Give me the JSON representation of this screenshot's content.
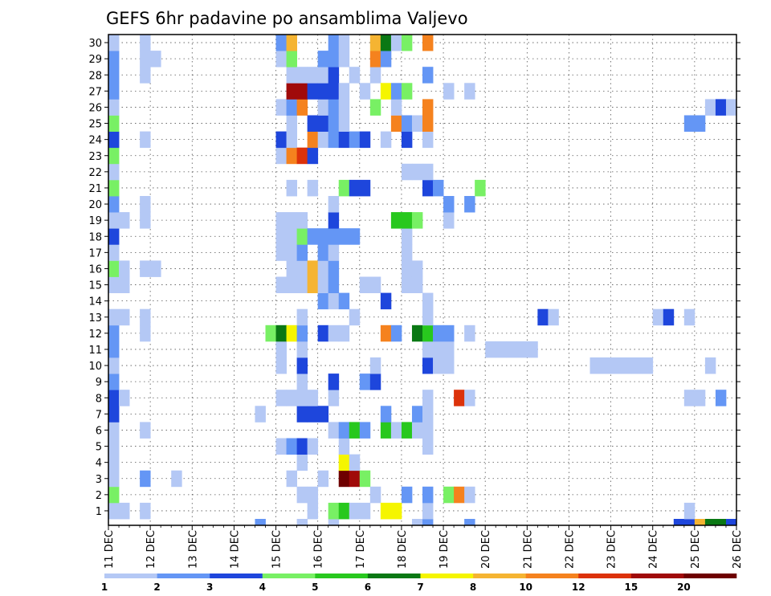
{
  "chart_data": {
    "type": "heatmap",
    "title": "GEFS 6hr padavine po ansamblima Valjevo",
    "x_unit": "6-hour steps starting 11 DEC 00Z",
    "x_tick_labels": [
      "11 DEC",
      "12 DEC",
      "13 DEC",
      "14 DEC",
      "15 DEC",
      "16 DEC",
      "17 DEC",
      "18 DEC",
      "19 DEC",
      "20 DEC",
      "21 DEC",
      "22 DEC",
      "23 DEC",
      "24 DEC",
      "25 DEC",
      "26 DEC"
    ],
    "y_tick_labels": [
      "1",
      "2",
      "3",
      "4",
      "5",
      "6",
      "7",
      "8",
      "9",
      "10",
      "11",
      "12",
      "13",
      "14",
      "15",
      "16",
      "17",
      "18",
      "19",
      "20",
      "21",
      "22",
      "23",
      "24",
      "25",
      "26",
      "27",
      "28",
      "29",
      "30"
    ],
    "xlim": [
      0,
      60
    ],
    "ylim": [
      0,
      30
    ],
    "grid": true,
    "colorbar": {
      "levels": [
        "1",
        "2",
        "3",
        "4",
        "5",
        "6",
        "7",
        "8",
        "10",
        "12",
        "15",
        "20"
      ],
      "colors": [
        "#b4c8f5",
        "#6496f5",
        "#1e46dc",
        "#78f064",
        "#28c81e",
        "#0a7814",
        "#f5f500",
        "#f5b432",
        "#f5821e",
        "#dc320a",
        "#a00a0a",
        "#6e0000"
      ]
    },
    "cells_format": "[x_step, member, color_class]",
    "cells": [
      [
        0,
        1,
        1
      ],
      [
        0,
        2,
        4
      ],
      [
        0,
        3,
        1
      ],
      [
        0,
        4,
        1
      ],
      [
        0,
        5,
        1
      ],
      [
        0,
        6,
        1
      ],
      [
        0,
        7,
        3
      ],
      [
        0,
        8,
        3
      ],
      [
        0,
        9,
        2
      ],
      [
        0,
        10,
        1
      ],
      [
        0,
        11,
        2
      ],
      [
        0,
        12,
        2
      ],
      [
        0,
        13,
        1
      ],
      [
        0,
        15,
        1
      ],
      [
        0,
        16,
        4
      ],
      [
        0,
        17,
        1
      ],
      [
        0,
        18,
        3
      ],
      [
        0,
        19,
        1
      ],
      [
        0,
        20,
        2
      ],
      [
        0,
        21,
        4
      ],
      [
        0,
        22,
        1
      ],
      [
        0,
        23,
        4
      ],
      [
        0,
        24,
        3
      ],
      [
        0,
        25,
        4
      ],
      [
        0,
        26,
        1
      ],
      [
        0,
        27,
        2
      ],
      [
        0,
        28,
        2
      ],
      [
        0,
        29,
        2
      ],
      [
        0,
        30,
        1
      ],
      [
        1,
        1,
        1
      ],
      [
        1,
        8,
        1
      ],
      [
        1,
        13,
        1
      ],
      [
        1,
        15,
        1
      ],
      [
        1,
        16,
        1
      ],
      [
        1,
        19,
        1
      ],
      [
        3,
        1,
        1
      ],
      [
        3,
        3,
        2
      ],
      [
        3,
        6,
        1
      ],
      [
        3,
        12,
        1
      ],
      [
        3,
        13,
        1
      ],
      [
        3,
        16,
        1
      ],
      [
        3,
        19,
        1
      ],
      [
        3,
        20,
        1
      ],
      [
        3,
        24,
        1
      ],
      [
        3,
        28,
        1
      ],
      [
        3,
        29,
        1
      ],
      [
        3,
        30,
        1
      ],
      [
        4,
        16,
        1
      ],
      [
        4,
        29,
        1
      ],
      [
        6,
        3,
        1
      ],
      [
        14,
        0,
        2
      ],
      [
        14,
        7,
        1
      ],
      [
        15,
        12,
        4
      ],
      [
        16,
        5,
        1
      ],
      [
        16,
        8,
        1
      ],
      [
        16,
        10,
        1
      ],
      [
        16,
        11,
        1
      ],
      [
        16,
        12,
        6
      ],
      [
        16,
        15,
        1
      ],
      [
        16,
        17,
        1
      ],
      [
        16,
        18,
        1
      ],
      [
        16,
        19,
        1
      ],
      [
        16,
        23,
        1
      ],
      [
        16,
        24,
        3
      ],
      [
        16,
        26,
        1
      ],
      [
        16,
        29,
        1
      ],
      [
        16,
        30,
        2
      ],
      [
        17,
        3,
        1
      ],
      [
        17,
        5,
        2
      ],
      [
        17,
        8,
        1
      ],
      [
        17,
        12,
        7
      ],
      [
        17,
        15,
        1
      ],
      [
        17,
        16,
        1
      ],
      [
        17,
        17,
        1
      ],
      [
        17,
        18,
        1
      ],
      [
        17,
        19,
        1
      ],
      [
        17,
        21,
        1
      ],
      [
        17,
        23,
        9
      ],
      [
        17,
        24,
        1
      ],
      [
        17,
        25,
        1
      ],
      [
        17,
        26,
        2
      ],
      [
        17,
        27,
        11
      ],
      [
        17,
        28,
        1
      ],
      [
        17,
        29,
        4
      ],
      [
        17,
        30,
        8
      ],
      [
        18,
        0,
        1
      ],
      [
        18,
        2,
        1
      ],
      [
        18,
        4,
        1
      ],
      [
        18,
        5,
        3
      ],
      [
        18,
        7,
        3
      ],
      [
        18,
        8,
        1
      ],
      [
        18,
        9,
        1
      ],
      [
        18,
        10,
        3
      ],
      [
        18,
        11,
        1
      ],
      [
        18,
        12,
        2
      ],
      [
        18,
        13,
        1
      ],
      [
        18,
        15,
        1
      ],
      [
        18,
        16,
        1
      ],
      [
        18,
        17,
        2
      ],
      [
        18,
        18,
        4
      ],
      [
        18,
        19,
        1
      ],
      [
        18,
        23,
        10
      ],
      [
        18,
        26,
        9
      ],
      [
        18,
        27,
        11
      ],
      [
        18,
        28,
        1
      ],
      [
        19,
        1,
        1
      ],
      [
        19,
        2,
        1
      ],
      [
        19,
        5,
        1
      ],
      [
        19,
        7,
        3
      ],
      [
        19,
        8,
        1
      ],
      [
        19,
        15,
        8
      ],
      [
        19,
        16,
        8
      ],
      [
        19,
        18,
        2
      ],
      [
        19,
        21,
        1
      ],
      [
        19,
        23,
        3
      ],
      [
        19,
        24,
        9
      ],
      [
        19,
        25,
        3
      ],
      [
        19,
        27,
        3
      ],
      [
        19,
        28,
        1
      ],
      [
        20,
        3,
        1
      ],
      [
        20,
        7,
        3
      ],
      [
        20,
        12,
        3
      ],
      [
        20,
        14,
        2
      ],
      [
        20,
        15,
        1
      ],
      [
        20,
        16,
        1
      ],
      [
        20,
        17,
        2
      ],
      [
        20,
        18,
        2
      ],
      [
        20,
        24,
        1
      ],
      [
        20,
        25,
        3
      ],
      [
        20,
        26,
        1
      ],
      [
        20,
        27,
        3
      ],
      [
        20,
        28,
        1
      ],
      [
        20,
        29,
        2
      ],
      [
        21,
        0,
        1
      ],
      [
        21,
        1,
        4
      ],
      [
        21,
        6,
        1
      ],
      [
        21,
        8,
        1
      ],
      [
        21,
        9,
        3
      ],
      [
        21,
        12,
        1
      ],
      [
        21,
        14,
        1
      ],
      [
        21,
        15,
        2
      ],
      [
        21,
        16,
        2
      ],
      [
        21,
        17,
        1
      ],
      [
        21,
        18,
        2
      ],
      [
        21,
        19,
        3
      ],
      [
        21,
        20,
        1
      ],
      [
        21,
        24,
        2
      ],
      [
        21,
        25,
        2
      ],
      [
        21,
        26,
        2
      ],
      [
        21,
        27,
        3
      ],
      [
        21,
        28,
        3
      ],
      [
        21,
        29,
        2
      ],
      [
        21,
        30,
        2
      ],
      [
        22,
        1,
        5
      ],
      [
        22,
        3,
        12
      ],
      [
        22,
        4,
        7
      ],
      [
        22,
        5,
        1
      ],
      [
        22,
        6,
        2
      ],
      [
        22,
        12,
        1
      ],
      [
        22,
        14,
        2
      ],
      [
        22,
        18,
        2
      ],
      [
        22,
        21,
        4
      ],
      [
        22,
        24,
        3
      ],
      [
        22,
        25,
        1
      ],
      [
        22,
        26,
        1
      ],
      [
        22,
        27,
        1
      ],
      [
        22,
        29,
        1
      ],
      [
        22,
        30,
        1
      ],
      [
        23,
        1,
        1
      ],
      [
        23,
        3,
        11
      ],
      [
        23,
        4,
        1
      ],
      [
        23,
        6,
        5
      ],
      [
        23,
        13,
        1
      ],
      [
        23,
        18,
        2
      ],
      [
        23,
        21,
        3
      ],
      [
        23,
        24,
        2
      ],
      [
        23,
        28,
        1
      ],
      [
        24,
        1,
        1
      ],
      [
        24,
        3,
        4
      ],
      [
        24,
        6,
        2
      ],
      [
        24,
        9,
        2
      ],
      [
        24,
        15,
        1
      ],
      [
        24,
        21,
        3
      ],
      [
        24,
        24,
        3
      ],
      [
        24,
        27,
        1
      ],
      [
        25,
        2,
        1
      ],
      [
        25,
        9,
        3
      ],
      [
        25,
        10,
        1
      ],
      [
        25,
        15,
        1
      ],
      [
        25,
        26,
        4
      ],
      [
        25,
        28,
        1
      ],
      [
        25,
        29,
        9
      ],
      [
        25,
        30,
        8
      ],
      [
        26,
        1,
        7
      ],
      [
        26,
        6,
        5
      ],
      [
        26,
        7,
        2
      ],
      [
        26,
        12,
        9
      ],
      [
        26,
        14,
        3
      ],
      [
        26,
        24,
        1
      ],
      [
        26,
        27,
        7
      ],
      [
        26,
        29,
        2
      ],
      [
        26,
        30,
        6
      ],
      [
        27,
        1,
        7
      ],
      [
        27,
        6,
        1
      ],
      [
        27,
        12,
        2
      ],
      [
        27,
        19,
        5
      ],
      [
        27,
        25,
        9
      ],
      [
        27,
        26,
        1
      ],
      [
        27,
        27,
        2
      ],
      [
        27,
        30,
        1
      ],
      [
        28,
        2,
        2
      ],
      [
        28,
        6,
        5
      ],
      [
        28,
        15,
        1
      ],
      [
        28,
        16,
        1
      ],
      [
        28,
        17,
        1
      ],
      [
        28,
        18,
        1
      ],
      [
        28,
        19,
        5
      ],
      [
        28,
        22,
        1
      ],
      [
        28,
        24,
        3
      ],
      [
        28,
        25,
        2
      ],
      [
        28,
        27,
        4
      ],
      [
        28,
        30,
        4
      ],
      [
        29,
        0,
        1
      ],
      [
        29,
        6,
        1
      ],
      [
        29,
        7,
        2
      ],
      [
        29,
        12,
        6
      ],
      [
        29,
        15,
        1
      ],
      [
        29,
        16,
        1
      ],
      [
        29,
        19,
        4
      ],
      [
        29,
        22,
        1
      ],
      [
        29,
        25,
        1
      ],
      [
        30,
        0,
        2
      ],
      [
        30,
        1,
        1
      ],
      [
        30,
        2,
        2
      ],
      [
        30,
        5,
        1
      ],
      [
        30,
        6,
        1
      ],
      [
        30,
        7,
        1
      ],
      [
        30,
        8,
        1
      ],
      [
        30,
        10,
        3
      ],
      [
        30,
        11,
        1
      ],
      [
        30,
        12,
        5
      ],
      [
        30,
        13,
        1
      ],
      [
        30,
        14,
        1
      ],
      [
        30,
        21,
        3
      ],
      [
        30,
        22,
        1
      ],
      [
        30,
        24,
        1
      ],
      [
        30,
        25,
        9
      ],
      [
        30,
        26,
        9
      ],
      [
        30,
        28,
        2
      ],
      [
        30,
        30,
        9
      ],
      [
        31,
        10,
        1
      ],
      [
        31,
        11,
        1
      ],
      [
        31,
        12,
        2
      ],
      [
        31,
        21,
        2
      ],
      [
        32,
        2,
        4
      ],
      [
        32,
        10,
        1
      ],
      [
        32,
        11,
        1
      ],
      [
        32,
        12,
        2
      ],
      [
        32,
        19,
        1
      ],
      [
        32,
        20,
        2
      ],
      [
        32,
        27,
        1
      ],
      [
        33,
        2,
        9
      ],
      [
        33,
        8,
        10
      ],
      [
        34,
        0,
        2
      ],
      [
        34,
        2,
        1
      ],
      [
        34,
        8,
        1
      ],
      [
        34,
        12,
        1
      ],
      [
        34,
        20,
        2
      ],
      [
        34,
        27,
        1
      ],
      [
        35,
        21,
        4
      ],
      [
        36,
        11,
        1
      ],
      [
        37,
        11,
        1
      ],
      [
        38,
        11,
        1
      ],
      [
        39,
        11,
        1
      ],
      [
        40,
        11,
        1
      ],
      [
        41,
        13,
        3
      ],
      [
        42,
        13,
        1
      ],
      [
        46,
        10,
        1
      ],
      [
        47,
        10,
        1
      ],
      [
        48,
        10,
        1
      ],
      [
        49,
        10,
        1
      ],
      [
        50,
        10,
        1
      ],
      [
        51,
        10,
        1
      ],
      [
        52,
        13,
        1
      ],
      [
        53,
        13,
        3
      ],
      [
        54,
        0,
        3
      ],
      [
        55,
        0,
        3
      ],
      [
        55,
        1,
        1
      ],
      [
        55,
        8,
        1
      ],
      [
        55,
        13,
        1
      ],
      [
        55,
        25,
        2
      ],
      [
        56,
        0,
        8
      ],
      [
        56,
        8,
        1
      ],
      [
        56,
        25,
        2
      ],
      [
        57,
        0,
        6
      ],
      [
        57,
        10,
        1
      ],
      [
        57,
        26,
        1
      ],
      [
        58,
        0,
        6
      ],
      [
        58,
        8,
        2
      ],
      [
        58,
        26,
        3
      ],
      [
        59,
        0,
        3
      ],
      [
        59,
        26,
        1
      ]
    ]
  }
}
